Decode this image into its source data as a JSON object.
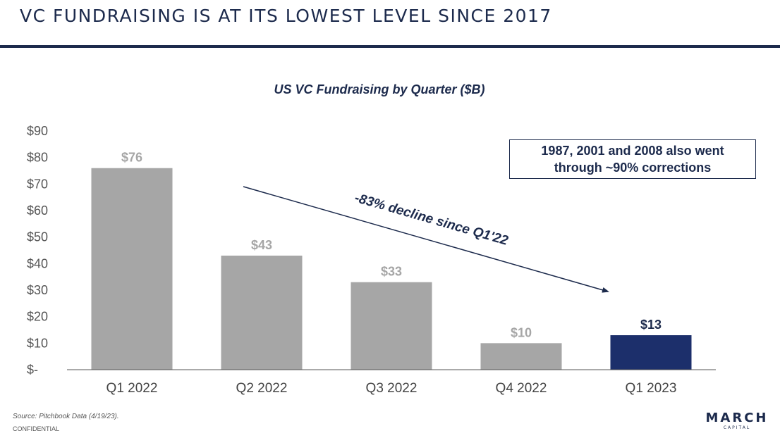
{
  "slide": {
    "title": "VC FUNDRAISING IS AT ITS LOWEST LEVEL SINCE 2017",
    "source": "Source: Pitchbook Data (4/19/23).",
    "confidential": "CONFIDENTIAL",
    "logo": {
      "main": "MARCH",
      "sub": "CAPITAL"
    },
    "callout": "1987, 2001 and 2008 also went through ~90% corrections"
  },
  "chart_data": {
    "type": "bar",
    "title": "US VC Fundraising by Quarter ($B)",
    "categories": [
      "Q1 2022",
      "Q2 2022",
      "Q3 2022",
      "Q4 2022",
      "Q1 2023"
    ],
    "values": [
      76,
      43,
      33,
      10,
      13
    ],
    "data_labels": [
      "$76",
      "$43",
      "$33",
      "$10",
      "$13"
    ],
    "yticks": [
      0,
      10,
      20,
      30,
      40,
      50,
      60,
      70,
      80,
      90
    ],
    "ytick_labels": [
      "$-",
      "$10",
      "$20",
      "$30",
      "$40",
      "$50",
      "$60",
      "$70",
      "$80",
      "$90"
    ],
    "ylim": [
      0,
      90
    ],
    "xlabel": "",
    "ylabel": "",
    "grid": false,
    "annotation": "-83% decline since Q1'22",
    "colors": {
      "bar": "#a6a6a6",
      "highlight_bar": "#1c2f6b",
      "label": "#a6a6a6",
      "highlight_label": "#1c2a4c",
      "accent": "#1c2a4c"
    }
  }
}
